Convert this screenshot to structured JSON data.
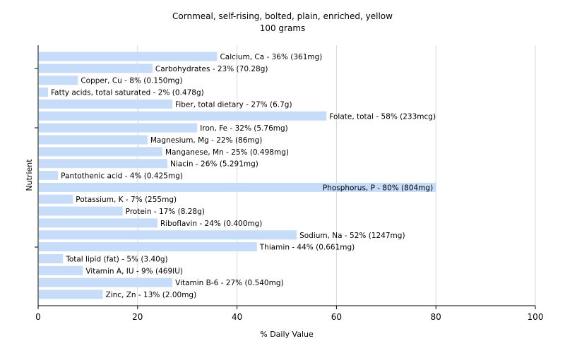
{
  "chart_data": {
    "type": "bar",
    "orientation": "horizontal",
    "title": "Cornmeal, self-rising, bolted, plain, enriched, yellow",
    "subtitle": "100 grams",
    "xlabel": "% Daily Value",
    "ylabel": "Nutrient",
    "xlim": [
      0,
      100
    ],
    "xticks": [
      "0",
      "20",
      "40",
      "60",
      "80",
      "100"
    ],
    "grid": true,
    "bar_color": "#c6dcf9",
    "grid_color": "#d9d9d9",
    "categories": [
      "Calcium, Ca",
      "Carbohydrates",
      "Copper, Cu",
      "Fatty acids, total saturated",
      "Fiber, total dietary",
      "Folate, total",
      "Iron, Fe",
      "Magnesium, Mg",
      "Manganese, Mn",
      "Niacin",
      "Pantothenic acid",
      "Phosphorus, P",
      "Potassium, K",
      "Protein",
      "Riboflavin",
      "Sodium, Na",
      "Thiamin",
      "Total lipid (fat)",
      "Vitamin A, IU",
      "Vitamin B-6",
      "Zinc, Zn"
    ],
    "values": [
      36,
      23,
      8,
      2,
      27,
      58,
      32,
      22,
      25,
      26,
      4,
      80,
      7,
      17,
      24,
      52,
      44,
      5,
      9,
      27,
      13
    ],
    "labels": [
      "Calcium, Ca - 36% (361mg)",
      "Carbohydrates - 23% (70.28g)",
      "Copper, Cu - 8% (0.150mg)",
      "Fatty acids, total saturated - 2% (0.478g)",
      "Fiber, total dietary - 27% (6.7g)",
      "Folate, total - 58% (233mcg)",
      "Iron, Fe - 32% (5.76mg)",
      "Magnesium, Mg - 22% (86mg)",
      "Manganese, Mn - 25% (0.498mg)",
      "Niacin - 26% (5.291mg)",
      "Pantothenic acid - 4% (0.425mg)",
      "Phosphorus, P - 80% (804mg)",
      "Potassium, K - 7% (255mg)",
      "Protein - 17% (8.28g)",
      "Riboflavin - 24% (0.400mg)",
      "Sodium, Na - 52% (1247mg)",
      "Thiamin - 44% (0.661mg)",
      "Total lipid (fat) - 5% (3.40g)",
      "Vitamin A, IU - 9% (469IU)",
      "Vitamin B-6 - 27% (0.540mg)",
      "Zinc, Zn - 13% (2.00mg)"
    ]
  }
}
